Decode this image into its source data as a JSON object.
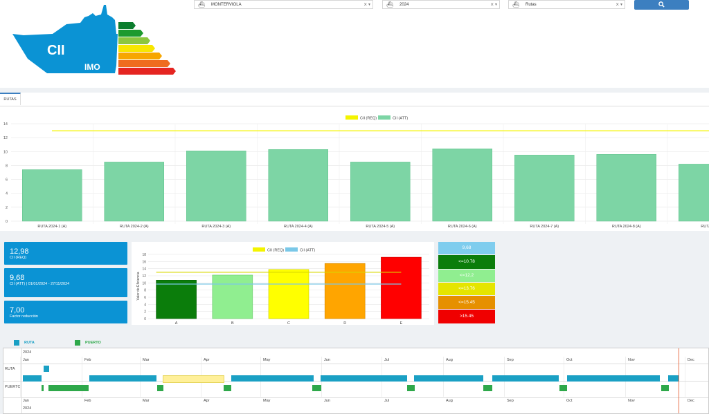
{
  "filters": {
    "ship": "MONTERVIOLA",
    "year": "2024",
    "type": "Rutas",
    "clear_icon": "×",
    "caret_icon": "▼",
    "search_icon": "magnifier-icon"
  },
  "logo": {
    "cii": "CII",
    "imo": "IMO"
  },
  "tabs": [
    {
      "label": "RUTAS"
    }
  ],
  "route_chart": {
    "type": "bar",
    "legend": [
      {
        "name": "CII (REQ)",
        "color": "#f4f400"
      },
      {
        "name": "CII (ATT)",
        "color": "#7dd5a5"
      }
    ],
    "categories": [
      "RUTA 2024-1 (A)",
      "RUTA 2024-2 (A)",
      "RUTA 2024-3 (A)",
      "RUTA 2024-4 (A)",
      "RUTA 2024-5 (A)",
      "RUTA 2024-6 (A)",
      "RUTA 2024-7 (A)",
      "RUTA 2024-8 (A)",
      "RUTA 20"
    ],
    "ylim": [
      0,
      14
    ],
    "yticks": [
      "0",
      "2",
      "4",
      "6",
      "8",
      "10",
      "12",
      "14"
    ]
  },
  "kpis": [
    {
      "value": "12,98",
      "label": "CII (REQ)"
    },
    {
      "value": "9,68",
      "label": "CII (ATT) | 01/01/2024 - 27/11/2024"
    },
    {
      "value": "7,00",
      "label": "Factor reducción"
    }
  ],
  "grade_chart": {
    "type": "bar",
    "legend": [
      {
        "name": "CII (REQ)",
        "color": "#f4f400"
      },
      {
        "name": "CII (ATT)",
        "color": "#7ac8e8"
      }
    ],
    "categories": [
      "A",
      "B",
      "C",
      "D",
      "E"
    ],
    "ylabel": "Valor de Eficiencia",
    "ylim": [
      0,
      18
    ],
    "yticks": [
      "0",
      "2",
      "4",
      "6",
      "8",
      "10",
      "12",
      "14",
      "16",
      "18"
    ]
  },
  "chart_data": [
    {
      "type": "bar",
      "categories": [
        "RUTA 2024-1 (A)",
        "RUTA 2024-2 (A)",
        "RUTA 2024-3 (A)",
        "RUTA 2024-4 (A)",
        "RUTA 2024-5 (A)",
        "RUTA 2024-6 (A)",
        "RUTA 2024-7 (A)",
        "RUTA 2024-8 (A)",
        "RUTA 20"
      ],
      "series": [
        {
          "name": "CII (ATT)",
          "values": [
            7.4,
            8.5,
            10.1,
            10.3,
            8.5,
            10.4,
            9.5,
            9.6,
            8.2
          ]
        },
        {
          "name": "CII (REQ)",
          "values": [
            12.98,
            12.98,
            12.98,
            12.98,
            12.98,
            12.98,
            12.98,
            12.98,
            12.98
          ]
        }
      ],
      "ylim": [
        0,
        14
      ]
    },
    {
      "type": "bar",
      "categories": [
        "A",
        "B",
        "C",
        "D",
        "E"
      ],
      "series": [
        {
          "name": "grades",
          "values": [
            10.78,
            12.2,
            13.76,
            15.45,
            17.2
          ]
        },
        {
          "name": "CII (REQ)",
          "values": [
            12.98,
            12.98,
            12.98,
            12.98,
            12.98
          ]
        },
        {
          "name": "CII (ATT)",
          "values": [
            9.68,
            9.68,
            9.68,
            9.68,
            9.68
          ]
        }
      ],
      "ylabel": "Valor de Eficiencia",
      "ylim": [
        0,
        18
      ]
    }
  ],
  "grade_legend": [
    {
      "label": "9,68",
      "color": "#7fcdee"
    },
    {
      "label": "<=10.78",
      "color": "#0b7d0b"
    },
    {
      "label": "<=12.2",
      "color": "#90ee90"
    },
    {
      "label": "<=13.76",
      "color": "#e5e500"
    },
    {
      "label": "<=15.45",
      "color": "#e69000"
    },
    {
      "label": ">15.45",
      "color": "#f00000"
    }
  ],
  "gantt": {
    "legend": [
      {
        "label": "RUTA",
        "color": "#1aa0c4"
      },
      {
        "label": "PUERTO",
        "color": "#2ea84a"
      }
    ],
    "year": "2024",
    "months": [
      "Jan",
      "Feb",
      "Mar",
      "Apr",
      "May",
      "Jun",
      "Jul",
      "Aug",
      "Sep",
      "Oct",
      "Nov",
      "Dec"
    ],
    "rows": [
      "RUTA",
      "PUERTO"
    ]
  }
}
